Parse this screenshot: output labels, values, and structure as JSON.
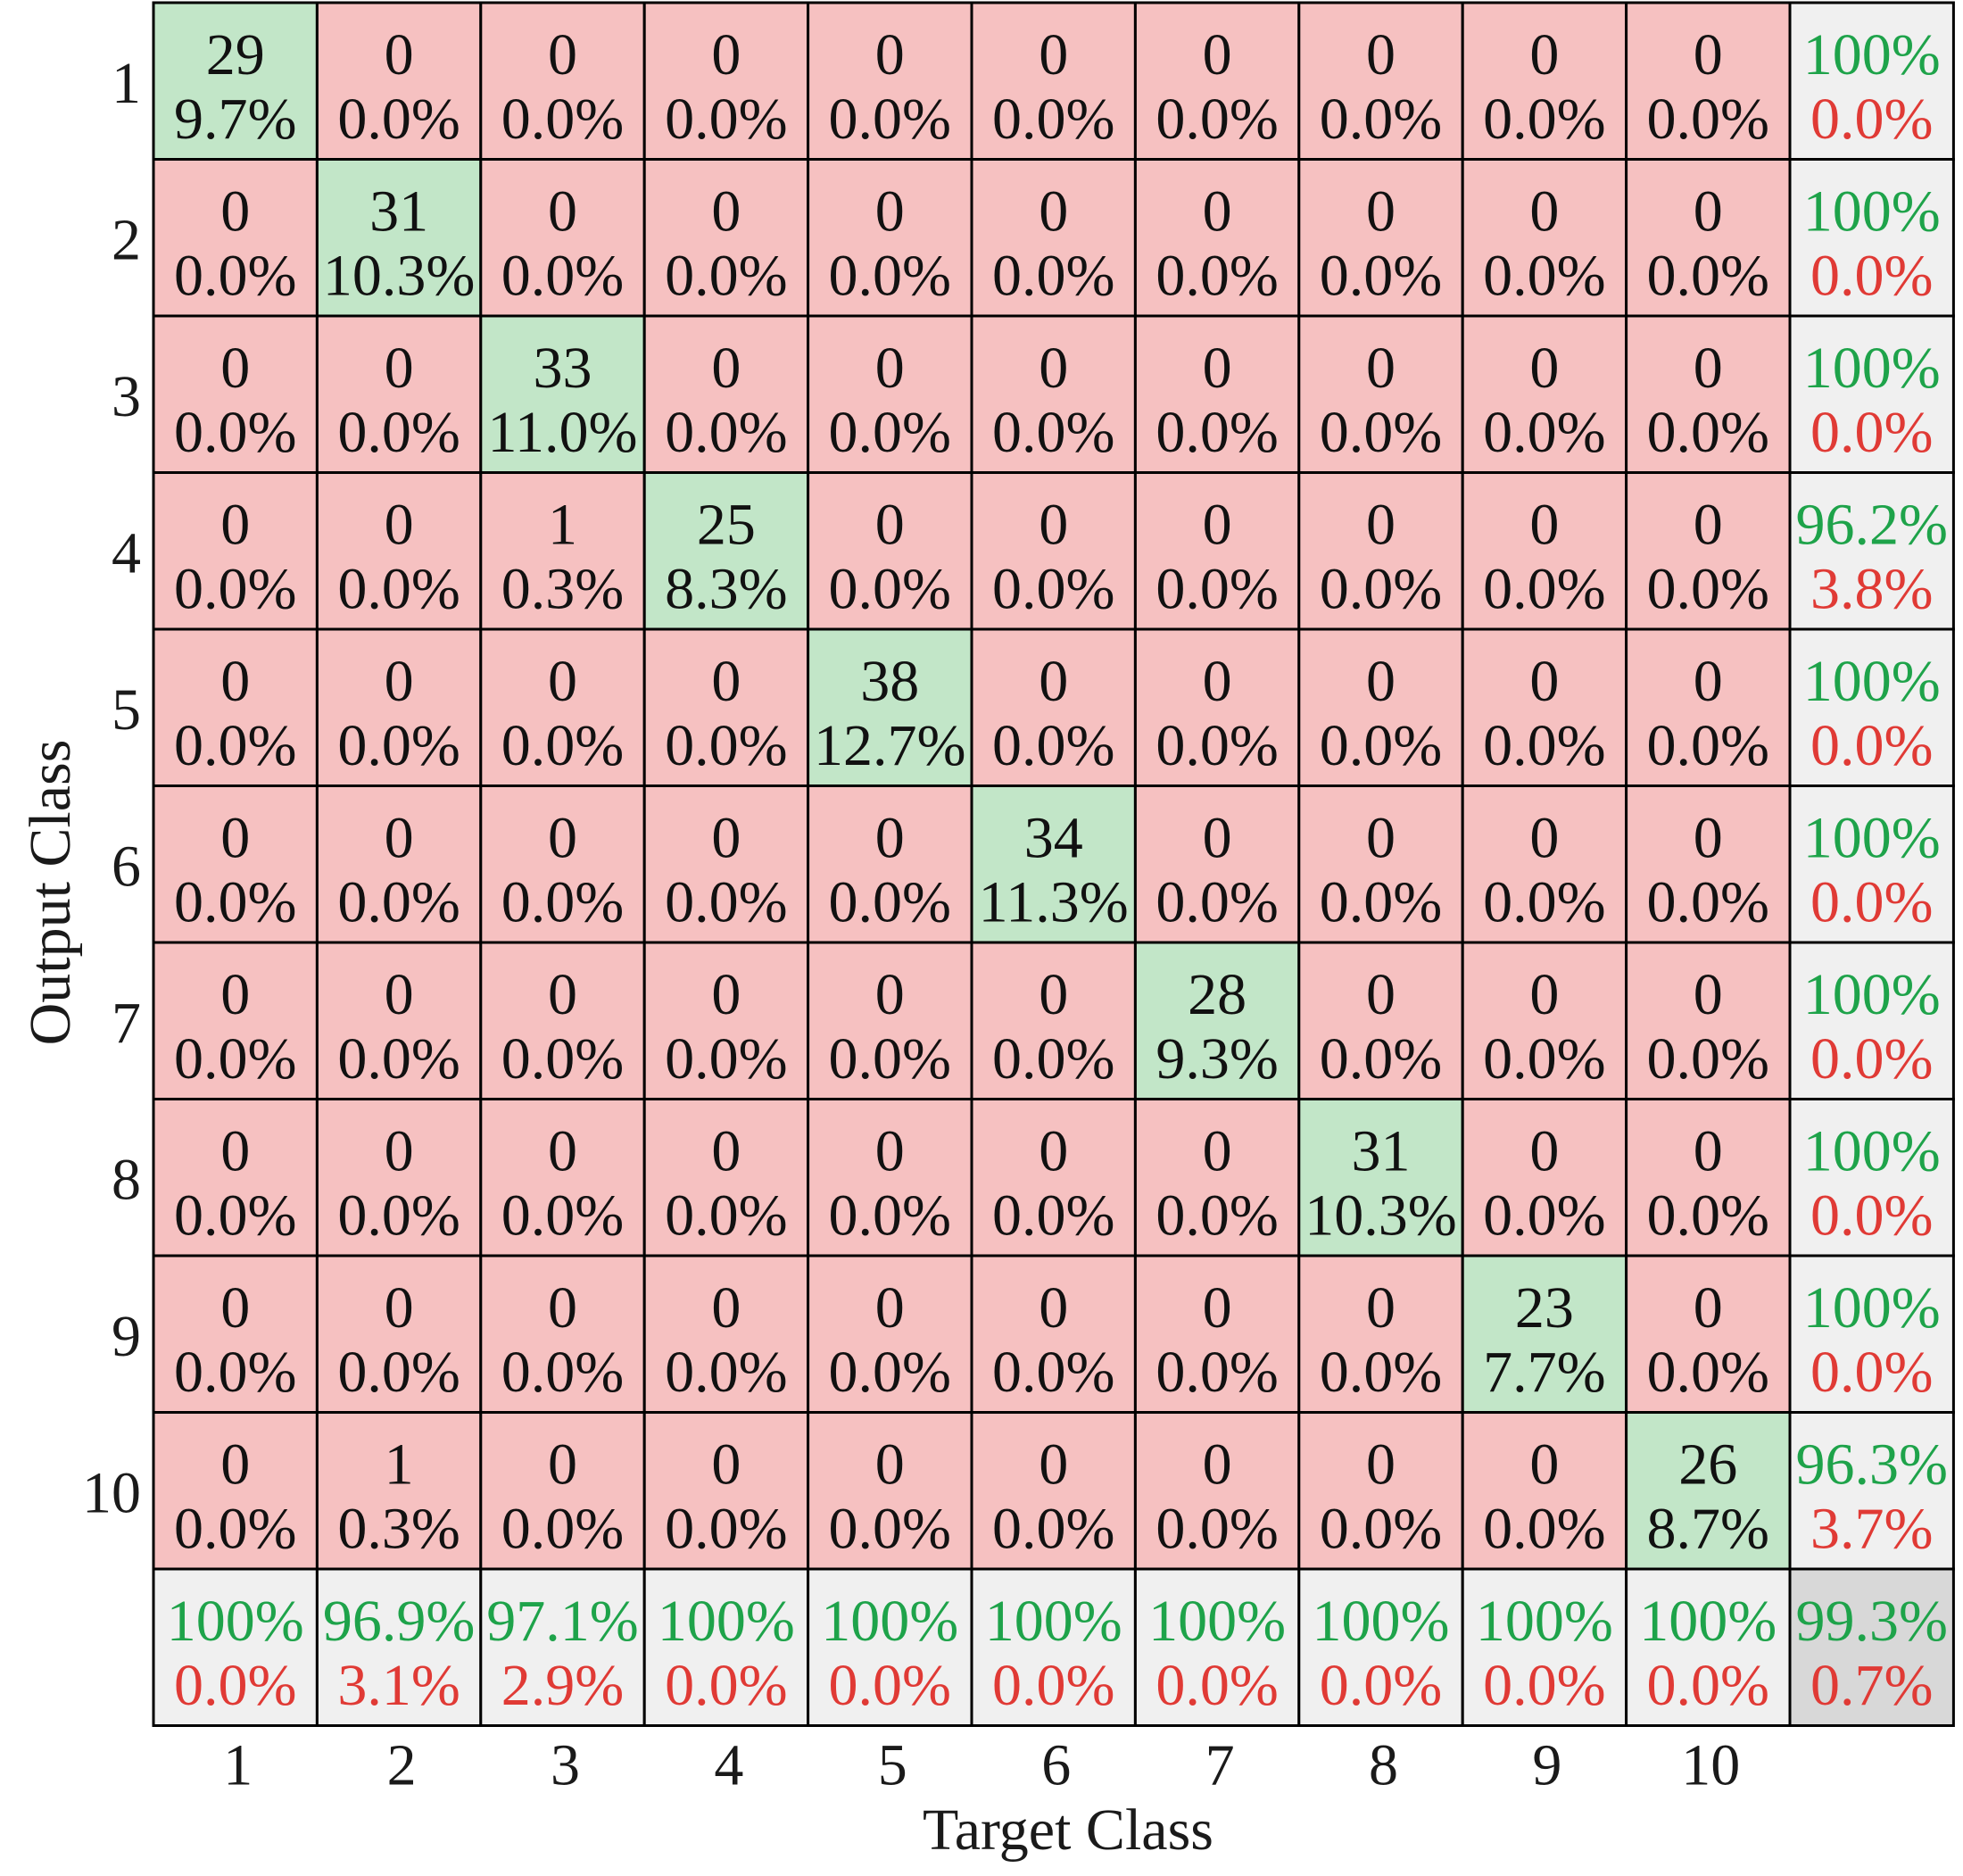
{
  "chart_data": {
    "type": "heatmap",
    "subtype": "confusion-matrix",
    "xlabel": "Target Class",
    "ylabel": "Output Class",
    "x_tick_labels": [
      "1",
      "2",
      "3",
      "4",
      "5",
      "6",
      "7",
      "8",
      "9",
      "10"
    ],
    "y_tick_labels": [
      "1",
      "2",
      "3",
      "4",
      "5",
      "6",
      "7",
      "8",
      "9",
      "10"
    ],
    "cells": [
      [
        {
          "count": "29",
          "pct": "9.7%"
        },
        {
          "count": "0",
          "pct": "0.0%"
        },
        {
          "count": "0",
          "pct": "0.0%"
        },
        {
          "count": "0",
          "pct": "0.0%"
        },
        {
          "count": "0",
          "pct": "0.0%"
        },
        {
          "count": "0",
          "pct": "0.0%"
        },
        {
          "count": "0",
          "pct": "0.0%"
        },
        {
          "count": "0",
          "pct": "0.0%"
        },
        {
          "count": "0",
          "pct": "0.0%"
        },
        {
          "count": "0",
          "pct": "0.0%"
        }
      ],
      [
        {
          "count": "0",
          "pct": "0.0%"
        },
        {
          "count": "31",
          "pct": "10.3%"
        },
        {
          "count": "0",
          "pct": "0.0%"
        },
        {
          "count": "0",
          "pct": "0.0%"
        },
        {
          "count": "0",
          "pct": "0.0%"
        },
        {
          "count": "0",
          "pct": "0.0%"
        },
        {
          "count": "0",
          "pct": "0.0%"
        },
        {
          "count": "0",
          "pct": "0.0%"
        },
        {
          "count": "0",
          "pct": "0.0%"
        },
        {
          "count": "0",
          "pct": "0.0%"
        }
      ],
      [
        {
          "count": "0",
          "pct": "0.0%"
        },
        {
          "count": "0",
          "pct": "0.0%"
        },
        {
          "count": "33",
          "pct": "11.0%"
        },
        {
          "count": "0",
          "pct": "0.0%"
        },
        {
          "count": "0",
          "pct": "0.0%"
        },
        {
          "count": "0",
          "pct": "0.0%"
        },
        {
          "count": "0",
          "pct": "0.0%"
        },
        {
          "count": "0",
          "pct": "0.0%"
        },
        {
          "count": "0",
          "pct": "0.0%"
        },
        {
          "count": "0",
          "pct": "0.0%"
        }
      ],
      [
        {
          "count": "0",
          "pct": "0.0%"
        },
        {
          "count": "0",
          "pct": "0.0%"
        },
        {
          "count": "1",
          "pct": "0.3%"
        },
        {
          "count": "25",
          "pct": "8.3%"
        },
        {
          "count": "0",
          "pct": "0.0%"
        },
        {
          "count": "0",
          "pct": "0.0%"
        },
        {
          "count": "0",
          "pct": "0.0%"
        },
        {
          "count": "0",
          "pct": "0.0%"
        },
        {
          "count": "0",
          "pct": "0.0%"
        },
        {
          "count": "0",
          "pct": "0.0%"
        }
      ],
      [
        {
          "count": "0",
          "pct": "0.0%"
        },
        {
          "count": "0",
          "pct": "0.0%"
        },
        {
          "count": "0",
          "pct": "0.0%"
        },
        {
          "count": "0",
          "pct": "0.0%"
        },
        {
          "count": "38",
          "pct": "12.7%"
        },
        {
          "count": "0",
          "pct": "0.0%"
        },
        {
          "count": "0",
          "pct": "0.0%"
        },
        {
          "count": "0",
          "pct": "0.0%"
        },
        {
          "count": "0",
          "pct": "0.0%"
        },
        {
          "count": "0",
          "pct": "0.0%"
        }
      ],
      [
        {
          "count": "0",
          "pct": "0.0%"
        },
        {
          "count": "0",
          "pct": "0.0%"
        },
        {
          "count": "0",
          "pct": "0.0%"
        },
        {
          "count": "0",
          "pct": "0.0%"
        },
        {
          "count": "0",
          "pct": "0.0%"
        },
        {
          "count": "34",
          "pct": "11.3%"
        },
        {
          "count": "0",
          "pct": "0.0%"
        },
        {
          "count": "0",
          "pct": "0.0%"
        },
        {
          "count": "0",
          "pct": "0.0%"
        },
        {
          "count": "0",
          "pct": "0.0%"
        }
      ],
      [
        {
          "count": "0",
          "pct": "0.0%"
        },
        {
          "count": "0",
          "pct": "0.0%"
        },
        {
          "count": "0",
          "pct": "0.0%"
        },
        {
          "count": "0",
          "pct": "0.0%"
        },
        {
          "count": "0",
          "pct": "0.0%"
        },
        {
          "count": "0",
          "pct": "0.0%"
        },
        {
          "count": "28",
          "pct": "9.3%"
        },
        {
          "count": "0",
          "pct": "0.0%"
        },
        {
          "count": "0",
          "pct": "0.0%"
        },
        {
          "count": "0",
          "pct": "0.0%"
        }
      ],
      [
        {
          "count": "0",
          "pct": "0.0%"
        },
        {
          "count": "0",
          "pct": "0.0%"
        },
        {
          "count": "0",
          "pct": "0.0%"
        },
        {
          "count": "0",
          "pct": "0.0%"
        },
        {
          "count": "0",
          "pct": "0.0%"
        },
        {
          "count": "0",
          "pct": "0.0%"
        },
        {
          "count": "0",
          "pct": "0.0%"
        },
        {
          "count": "31",
          "pct": "10.3%"
        },
        {
          "count": "0",
          "pct": "0.0%"
        },
        {
          "count": "0",
          "pct": "0.0%"
        }
      ],
      [
        {
          "count": "0",
          "pct": "0.0%"
        },
        {
          "count": "0",
          "pct": "0.0%"
        },
        {
          "count": "0",
          "pct": "0.0%"
        },
        {
          "count": "0",
          "pct": "0.0%"
        },
        {
          "count": "0",
          "pct": "0.0%"
        },
        {
          "count": "0",
          "pct": "0.0%"
        },
        {
          "count": "0",
          "pct": "0.0%"
        },
        {
          "count": "0",
          "pct": "0.0%"
        },
        {
          "count": "23",
          "pct": "7.7%"
        },
        {
          "count": "0",
          "pct": "0.0%"
        }
      ],
      [
        {
          "count": "0",
          "pct": "0.0%"
        },
        {
          "count": "1",
          "pct": "0.3%"
        },
        {
          "count": "0",
          "pct": "0.0%"
        },
        {
          "count": "0",
          "pct": "0.0%"
        },
        {
          "count": "0",
          "pct": "0.0%"
        },
        {
          "count": "0",
          "pct": "0.0%"
        },
        {
          "count": "0",
          "pct": "0.0%"
        },
        {
          "count": "0",
          "pct": "0.0%"
        },
        {
          "count": "0",
          "pct": "0.0%"
        },
        {
          "count": "26",
          "pct": "8.7%"
        }
      ]
    ],
    "row_summary": [
      {
        "correct": "100%",
        "error": "0.0%"
      },
      {
        "correct": "100%",
        "error": "0.0%"
      },
      {
        "correct": "100%",
        "error": "0.0%"
      },
      {
        "correct": "96.2%",
        "error": "3.8%"
      },
      {
        "correct": "100%",
        "error": "0.0%"
      },
      {
        "correct": "100%",
        "error": "0.0%"
      },
      {
        "correct": "100%",
        "error": "0.0%"
      },
      {
        "correct": "100%",
        "error": "0.0%"
      },
      {
        "correct": "100%",
        "error": "0.0%"
      },
      {
        "correct": "96.3%",
        "error": "3.7%"
      }
    ],
    "col_summary": [
      {
        "correct": "100%",
        "error": "0.0%"
      },
      {
        "correct": "96.9%",
        "error": "3.1%"
      },
      {
        "correct": "97.1%",
        "error": "2.9%"
      },
      {
        "correct": "100%",
        "error": "0.0%"
      },
      {
        "correct": "100%",
        "error": "0.0%"
      },
      {
        "correct": "100%",
        "error": "0.0%"
      },
      {
        "correct": "100%",
        "error": "0.0%"
      },
      {
        "correct": "100%",
        "error": "0.0%"
      },
      {
        "correct": "100%",
        "error": "0.0%"
      },
      {
        "correct": "100%",
        "error": "0.0%"
      }
    ],
    "overall": {
      "correct": "99.3%",
      "error": "0.7%"
    },
    "colors": {
      "diagonal": "#c2e6c8",
      "off_diagonal": "#f6c1c1",
      "summary": "#f0f0f0",
      "overall": "#d8d8d8",
      "correct_text": "#1ea34a",
      "error_text": "#e03a35",
      "cell_text": "#111111",
      "border": "#000000"
    }
  }
}
